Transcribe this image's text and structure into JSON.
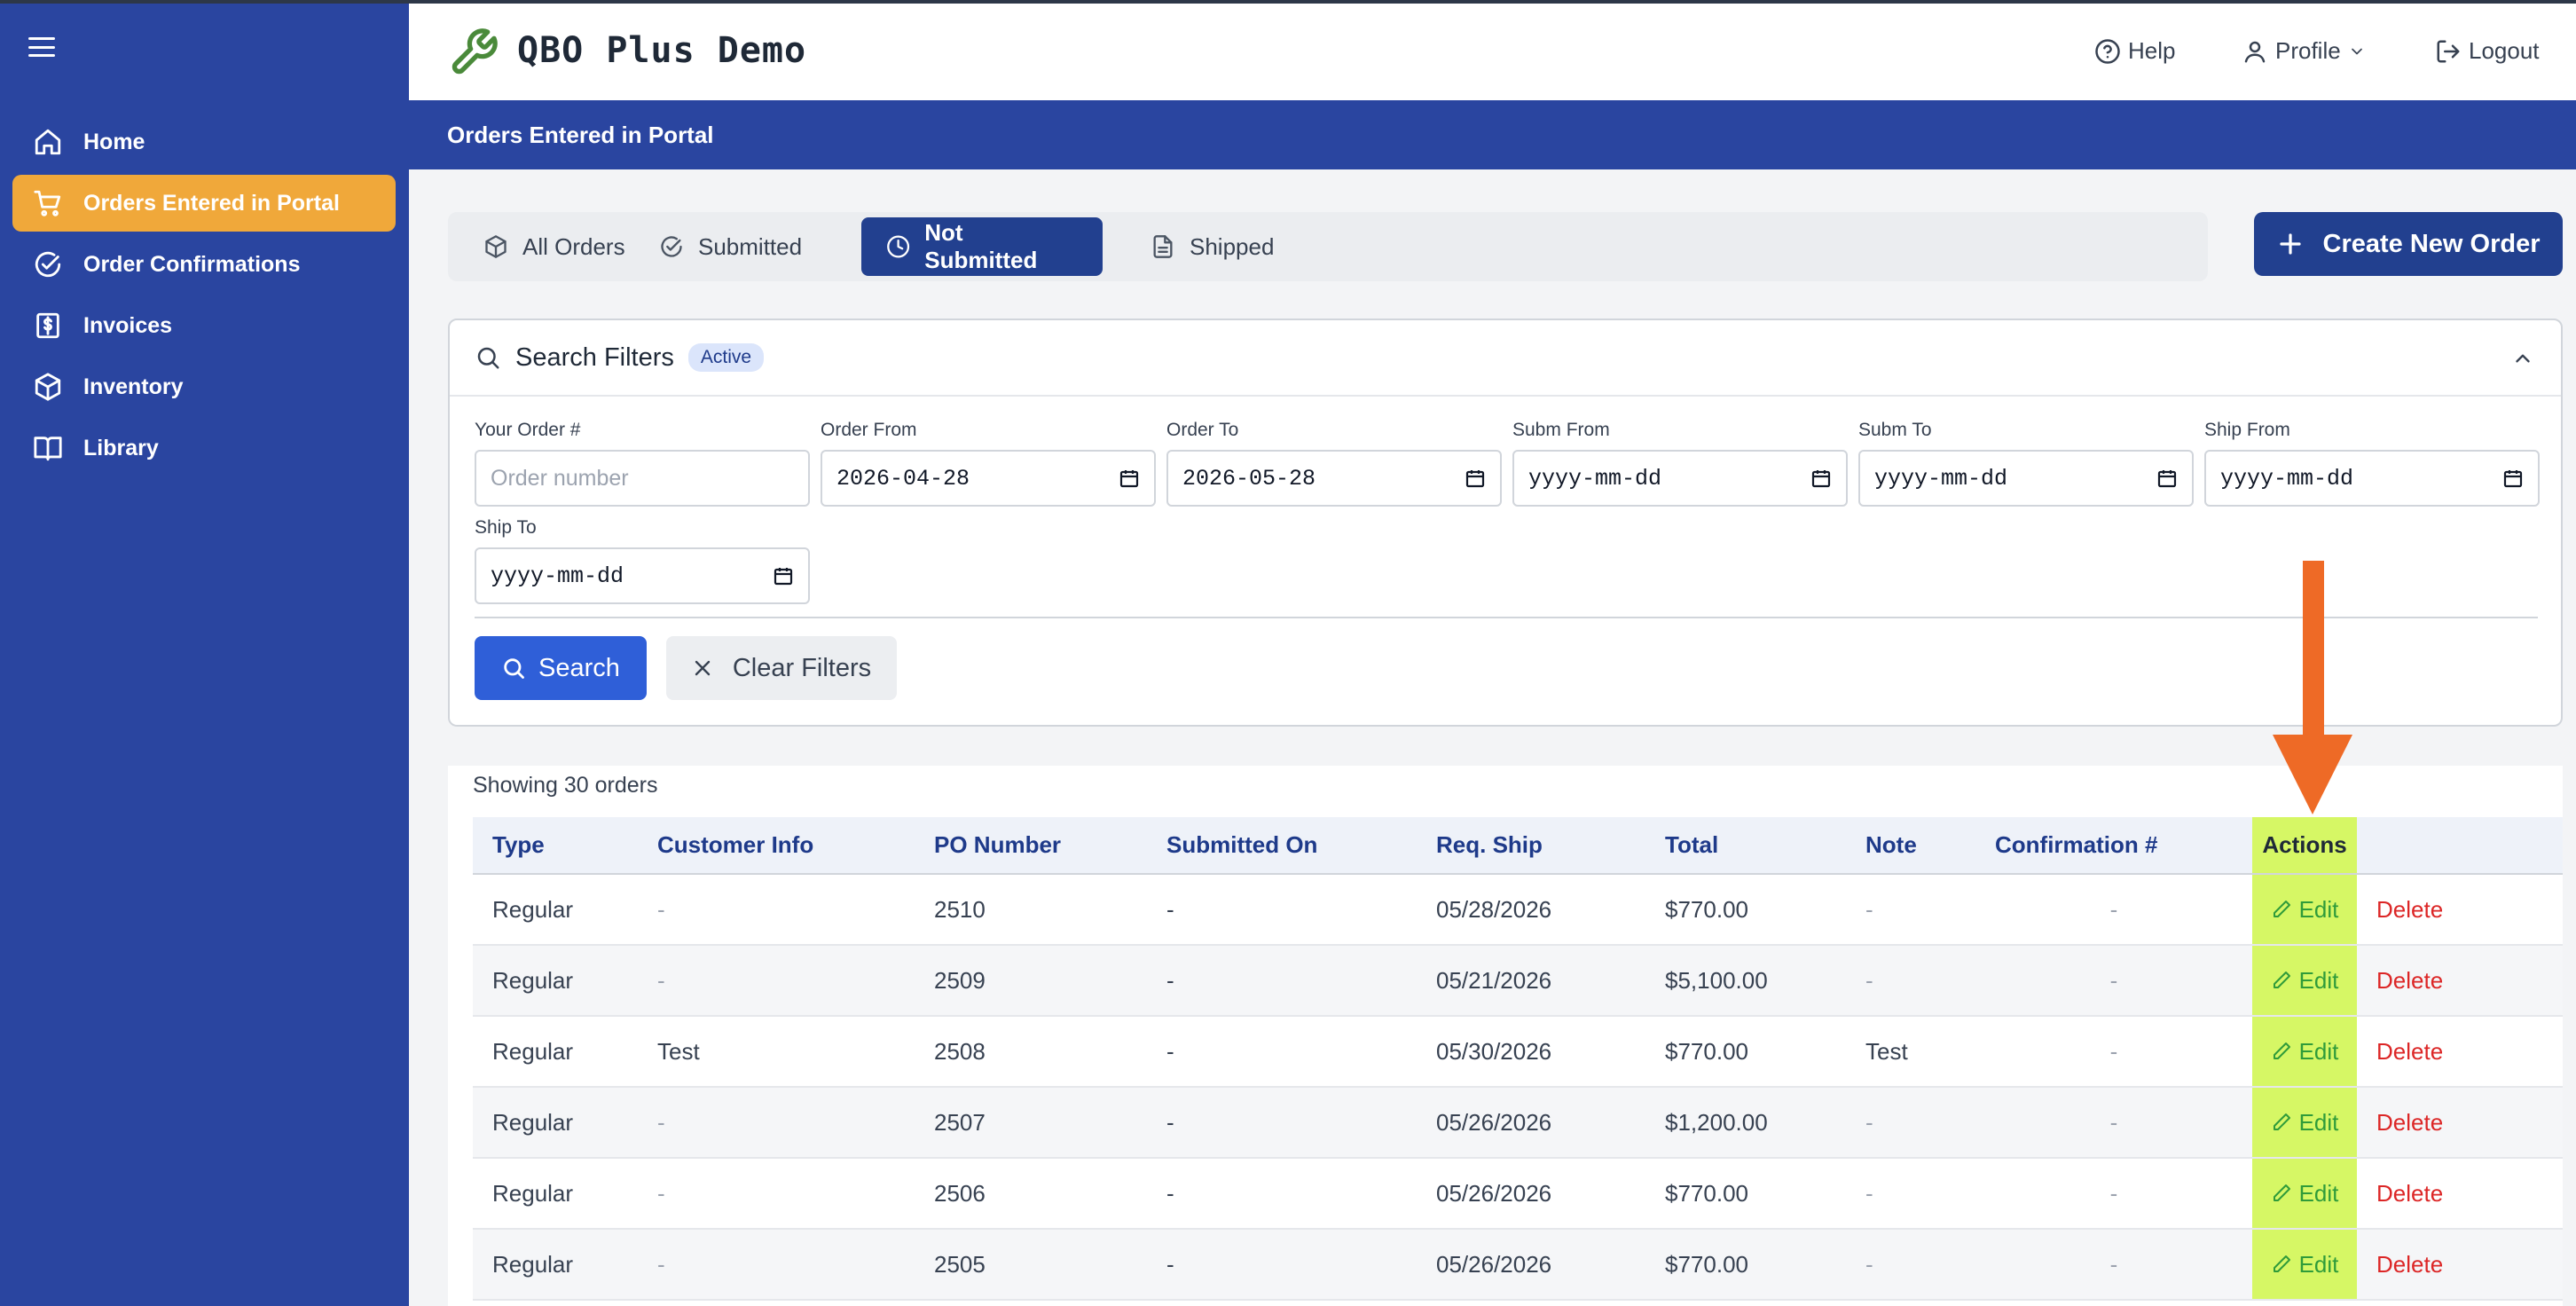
{
  "app": {
    "title": "QBO Plus Demo"
  },
  "sidebar": {
    "items": [
      {
        "label": "Home",
        "icon": "home-icon"
      },
      {
        "label": "Orders Entered in Portal",
        "icon": "cart-icon"
      },
      {
        "label": "Order Confirmations",
        "icon": "check-circle-icon"
      },
      {
        "label": "Invoices",
        "icon": "invoice-dollar-icon"
      },
      {
        "label": "Inventory",
        "icon": "box-icon"
      },
      {
        "label": "Library",
        "icon": "book-icon"
      }
    ],
    "active_index": 1,
    "active_color": "#f0a83a",
    "background": "#2a45a0"
  },
  "topnav": {
    "help": "Help",
    "profile": "Profile",
    "logout": "Logout"
  },
  "page": {
    "header": "Orders Entered in Portal"
  },
  "tabs": [
    {
      "label": "All Orders",
      "icon": "box-icon"
    },
    {
      "label": "Submitted",
      "icon": "check-circle-icon"
    },
    {
      "label": "Not Submitted",
      "icon": "clock-icon"
    },
    {
      "label": "Shipped",
      "icon": "document-icon"
    }
  ],
  "active_tab": "Not Submitted",
  "create_button": "Create New Order",
  "filters": {
    "title": "Search Filters",
    "badge": "Active",
    "your_order_label": "Your Order #",
    "your_order_placeholder": "Order number",
    "order_from_label": "Order From",
    "order_from_value": "2026-04-28",
    "order_to_label": "Order To",
    "order_to_value": "2026-05-28",
    "subm_from_label": "Subm From",
    "subm_from_value": "yyyy-mm-dd",
    "subm_to_label": "Subm To",
    "subm_to_value": "yyyy-mm-dd",
    "ship_from_label": "Ship From",
    "ship_from_value": "yyyy-mm-dd",
    "ship_to_label": "Ship To",
    "ship_to_value": "yyyy-mm-dd",
    "search_button": "Search",
    "clear_button": "Clear Filters"
  },
  "results": {
    "showing": "Showing 30 orders",
    "columns": [
      "Type",
      "Customer Info",
      "PO Number",
      "Submitted On",
      "Req. Ship",
      "Total",
      "Note",
      "Confirmation #",
      "Actions"
    ],
    "rows": [
      {
        "type": "Regular",
        "customer": "-",
        "po": "2510",
        "submitted": "-",
        "req_ship": "05/28/2026",
        "total": "$770.00",
        "note": "-",
        "confirmation": "-",
        "edit": "Edit",
        "delete": "Delete"
      },
      {
        "type": "Regular",
        "customer": "-",
        "po": "2509",
        "submitted": "-",
        "req_ship": "05/21/2026",
        "total": "$5,100.00",
        "note": "-",
        "confirmation": "-",
        "edit": "Edit",
        "delete": "Delete"
      },
      {
        "type": "Regular",
        "customer": "Test",
        "po": "2508",
        "submitted": "-",
        "req_ship": "05/30/2026",
        "total": "$770.00",
        "note": "Test",
        "confirmation": "-",
        "edit": "Edit",
        "delete": "Delete"
      },
      {
        "type": "Regular",
        "customer": "-",
        "po": "2507",
        "submitted": "-",
        "req_ship": "05/26/2026",
        "total": "$1,200.00",
        "note": "-",
        "confirmation": "-",
        "edit": "Edit",
        "delete": "Delete"
      },
      {
        "type": "Regular",
        "customer": "-",
        "po": "2506",
        "submitted": "-",
        "req_ship": "05/26/2026",
        "total": "$770.00",
        "note": "-",
        "confirmation": "-",
        "edit": "Edit",
        "delete": "Delete"
      },
      {
        "type": "Regular",
        "customer": "-",
        "po": "2505",
        "submitted": "-",
        "req_ship": "05/26/2026",
        "total": "$770.00",
        "note": "-",
        "confirmation": "-",
        "edit": "Edit",
        "delete": "Delete"
      }
    ]
  },
  "annotation": {
    "highlight_color": "#d6f765",
    "arrow_color": "#ee6a26",
    "arrow_icon": "down-arrow-annotation"
  }
}
